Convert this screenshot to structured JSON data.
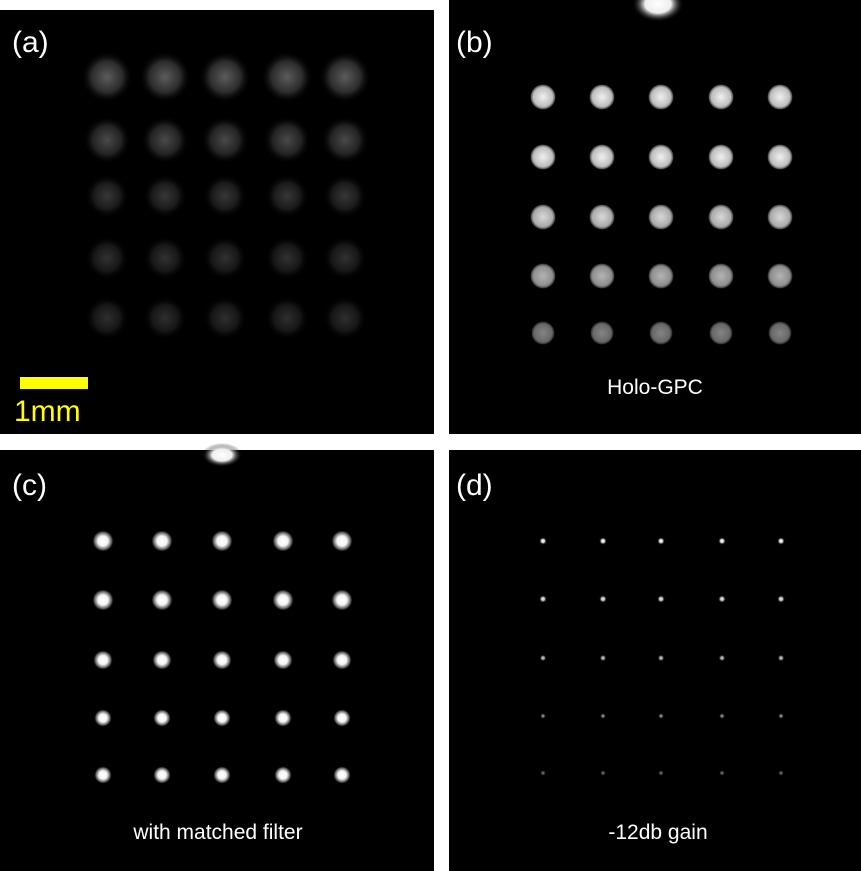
{
  "panels": [
    {
      "label": "(a)",
      "scale_bar": "1mm"
    },
    {
      "label": "(b)",
      "caption": "Holo-GPC"
    },
    {
      "label": "(c)",
      "caption": "with matched filter"
    },
    {
      "label": "(d)",
      "caption": "-12db gain"
    }
  ]
}
